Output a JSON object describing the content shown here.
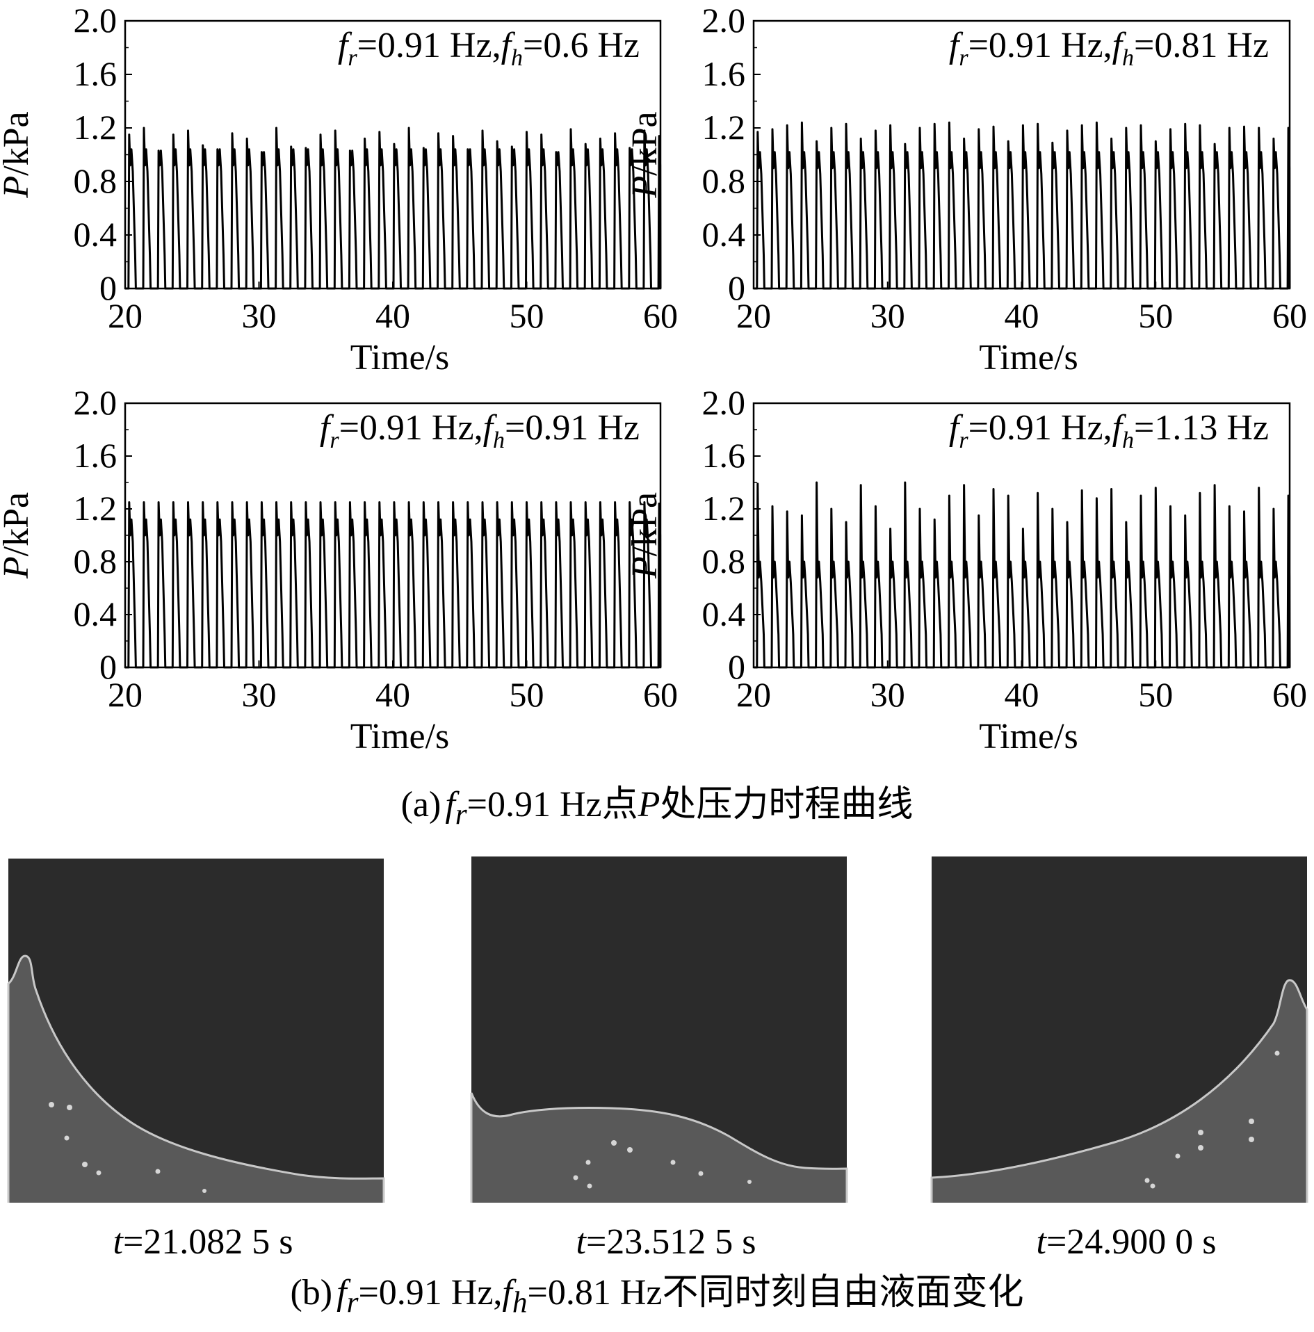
{
  "figure": {
    "caption_a": {
      "id": "(a)",
      "pre": "f",
      "sub": "r",
      "post": "=0.91 Hz点",
      "var": "P",
      "tail": "处压力时程曲线"
    },
    "caption_b": {
      "id": "(b)",
      "f1": "f",
      "s1": "r",
      "v1": "=0.91 Hz,",
      "f2": "f",
      "s2": "h",
      "v2": "=0.81 Hz不同时刻自由液面变化"
    },
    "snapshots": [
      {
        "t_var": "t",
        "t_value": "=21.082 5 s"
      },
      {
        "t_var": "t",
        "t_value": "=23.512 5 s"
      },
      {
        "t_var": "t",
        "t_value": "=24.900 0 s"
      }
    ],
    "colors": {
      "background": "#ffffff",
      "line": "#000000",
      "air": "#2b2b2b",
      "liquid": "#595959",
      "interface": "#c8c8c8",
      "particle": "#d6d6d6"
    }
  },
  "chart_data": [
    {
      "type": "line",
      "title": "",
      "annotation": {
        "f1": "f",
        "s1": "r",
        "v1": "=0.91 Hz,",
        "f2": "f",
        "s2": "h",
        "v2": "=0.6 Hz"
      },
      "xlabel": "Time/s",
      "ylabel_var": "P",
      "ylabel_unit": "/kPa",
      "xlim": [
        20,
        60
      ],
      "ylim": [
        0,
        2.0
      ],
      "xticks": [
        "20",
        "30",
        "40",
        "50",
        "60"
      ],
      "yticks": [
        "0",
        "0.4",
        "0.8",
        "1.2",
        "1.6",
        "2.0"
      ],
      "grid": false,
      "series_period_s": 1.1,
      "shoulder_kPa": 0.92,
      "series": [
        {
          "peaks": [
            1.15,
            1.2,
            1.03,
            1.15,
            1.18,
            1.07,
            1.04,
            1.16,
            1.12,
            1.02,
            1.2,
            1.06,
            1.05,
            1.15,
            1.18,
            1.03,
            1.12,
            1.17,
            1.08,
            1.2,
            1.05,
            1.16,
            1.14,
            1.04,
            1.18,
            1.1,
            1.06,
            1.17,
            1.15,
            1.02,
            1.19,
            1.08,
            1.12,
            1.16,
            1.05,
            1.18,
            1.14
          ]
        }
      ]
    },
    {
      "type": "line",
      "title": "",
      "annotation": {
        "f1": "f",
        "s1": "r",
        "v1": "=0.91 Hz,",
        "f2": "f",
        "s2": "h",
        "v2": "=0.81 Hz"
      },
      "xlabel": "Time/s",
      "ylabel_var": "P",
      "ylabel_unit": "/kPa",
      "xlim": [
        20,
        60
      ],
      "ylim": [
        0,
        2.0
      ],
      "xticks": [
        "20",
        "30",
        "40",
        "50",
        "60"
      ],
      "yticks": [
        "0",
        "0.4",
        "0.8",
        "1.2",
        "1.6",
        "2.0"
      ],
      "grid": false,
      "series_period_s": 1.1,
      "shoulder_kPa": 0.9,
      "series": [
        {
          "peaks": [
            1.17,
            1.19,
            1.22,
            1.24,
            1.1,
            1.2,
            1.23,
            1.12,
            1.18,
            1.22,
            1.08,
            1.2,
            1.23,
            1.24,
            1.12,
            1.19,
            1.21,
            1.1,
            1.22,
            1.23,
            1.09,
            1.18,
            1.22,
            1.24,
            1.12,
            1.2,
            1.22,
            1.1,
            1.19,
            1.23,
            1.22,
            1.08,
            1.2,
            1.21,
            1.2,
            1.12,
            1.2
          ]
        }
      ]
    },
    {
      "type": "line",
      "title": "",
      "annotation": {
        "f1": "f",
        "s1": "r",
        "v1": "=0.91 Hz,",
        "f2": "f",
        "s2": "h",
        "v2": "=0.91 Hz"
      },
      "xlabel": "Time/s",
      "ylabel_var": "P",
      "ylabel_unit": "/kPa",
      "xlim": [
        20,
        60
      ],
      "ylim": [
        0,
        2.0
      ],
      "xticks": [
        "20",
        "30",
        "40",
        "50",
        "60"
      ],
      "yticks": [
        "0",
        "0.4",
        "0.8",
        "1.2",
        "1.6",
        "2.0"
      ],
      "grid": false,
      "series_period_s": 1.1,
      "shoulder_kPa": 1.0,
      "series": [
        {
          "peaks": [
            1.25,
            1.25,
            1.25,
            1.25,
            1.25,
            1.25,
            1.25,
            1.25,
            1.25,
            1.25,
            1.25,
            1.25,
            1.25,
            1.25,
            1.25,
            1.25,
            1.25,
            1.25,
            1.25,
            1.25,
            1.25,
            1.25,
            1.25,
            1.25,
            1.25,
            1.25,
            1.25,
            1.25,
            1.25,
            1.25,
            1.25,
            1.25,
            1.25,
            1.25,
            1.25,
            1.25,
            1.24
          ]
        }
      ]
    },
    {
      "type": "line",
      "title": "",
      "annotation": {
        "f1": "f",
        "s1": "r",
        "v1": "=0.91 Hz,",
        "f2": "f",
        "s2": "h",
        "v2": "=1.13 Hz"
      },
      "xlabel": "Time/s",
      "ylabel_var": "P",
      "ylabel_unit": "/kPa",
      "xlim": [
        20,
        60
      ],
      "ylim": [
        0,
        2.0
      ],
      "xticks": [
        "20",
        "30",
        "40",
        "50",
        "60"
      ],
      "yticks": [
        "0",
        "0.4",
        "0.8",
        "1.2",
        "1.6",
        "2.0"
      ],
      "grid": false,
      "series_period_s": 1.1,
      "shoulder_kPa": 0.68,
      "series": [
        {
          "peaks": [
            1.39,
            1.22,
            1.18,
            1.15,
            1.4,
            1.2,
            1.1,
            1.38,
            1.22,
            1.05,
            1.4,
            1.2,
            1.12,
            1.3,
            1.38,
            1.15,
            1.35,
            1.3,
            1.05,
            1.32,
            1.2,
            1.1,
            1.34,
            1.28,
            1.35,
            1.1,
            1.3,
            1.36,
            1.22,
            1.15,
            1.32,
            1.38,
            1.22,
            1.18,
            1.36,
            1.2,
            1.3
          ]
        }
      ]
    }
  ]
}
